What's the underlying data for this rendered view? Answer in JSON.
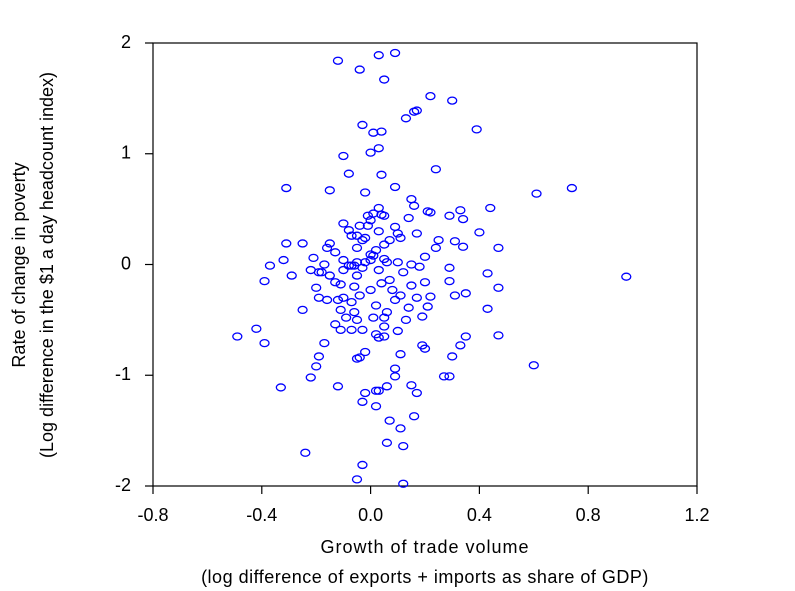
{
  "chart_data": {
    "type": "scatter",
    "xlabel": [
      "Growth of trade volume",
      "(log difference of exports + imports as share of GDP)"
    ],
    "ylabel": [
      "Rate of change in poverty",
      "(Log difference in the $1 a day headcount index)"
    ],
    "xlim": [
      -0.8,
      1.2
    ],
    "ylim": [
      -2,
      2
    ],
    "xticks": [
      -0.8,
      -0.4,
      {
        "value": 0,
        "label": "0.0"
      },
      0.4,
      0.8,
      1.2
    ],
    "yticks": [
      2,
      1,
      0,
      -1,
      -2
    ],
    "color": "#0000ff",
    "x": [
      -0.12,
      -0.04,
      0.03,
      0.09,
      0.05,
      0.22,
      0.3,
      -0.03,
      0.13,
      0.16,
      0.17,
      0.39,
      0.04,
      0.01,
      0.03,
      0.0,
      -0.1,
      0.24,
      -0.08,
      -0.02,
      0.09,
      -0.15,
      -0.31,
      0.61,
      0.74,
      0.04,
      0.94,
      0.6,
      0.47,
      0.47,
      0.43,
      0.44,
      0.47,
      0.43,
      0.4,
      0.35,
      0.33,
      0.31,
      0.35,
      0.33,
      0.34,
      0.31,
      0.34,
      0.29,
      0.29,
      0.29,
      0.3,
      0.29,
      0.27,
      0.25,
      0.24,
      0.22,
      0.21,
      0.2,
      0.18,
      0.2,
      0.21,
      0.22,
      0.2,
      0.19,
      0.19,
      0.17,
      0.15,
      0.16,
      0.17,
      0.14,
      0.15,
      0.15,
      0.17,
      0.14,
      0.13,
      0.15,
      0.16,
      0.11,
      0.1,
      0.09,
      0.09,
      0.11,
      0.12,
      0.1,
      0.11,
      0.09,
      0.1,
      0.08,
      0.07,
      0.09,
      0.06,
      0.06,
      0.05,
      0.05,
      0.04,
      0.05,
      0.05,
      0.05,
      0.03,
      0.02,
      0.01,
      0.02,
      0.0,
      0.03,
      0.02,
      0.03,
      0.04,
      0.03,
      0.0,
      -0.01,
      0.01,
      0.05,
      0.07,
      0.0,
      0.0,
      0.01,
      -0.02,
      -0.03,
      -0.05,
      -0.06,
      -0.04,
      -0.07,
      -0.06,
      -0.05,
      -0.03,
      -0.07,
      -0.04,
      -0.02,
      -0.05,
      -0.11,
      -0.09,
      -0.1,
      -0.11,
      -0.11,
      -0.1,
      -0.1,
      -0.08,
      -0.07,
      -0.06,
      -0.05,
      -0.05,
      -0.07,
      -0.05,
      -0.08,
      -0.1,
      -0.03,
      -0.02,
      -0.01,
      -0.04,
      -0.13,
      -0.15,
      -0.16,
      -0.17,
      -0.18,
      -0.15,
      -0.13,
      -0.16,
      -0.12,
      -0.19,
      -0.2,
      -0.19,
      -0.21,
      -0.22,
      -0.25,
      -0.25,
      -0.31,
      -0.29,
      -0.32,
      -0.37,
      -0.39,
      -0.42,
      -0.39,
      -0.49,
      -0.33,
      -0.24,
      -0.22,
      -0.2,
      -0.19,
      -0.17,
      -0.13,
      -0.12,
      -0.03,
      -0.02,
      0.02,
      0.02,
      0.03,
      0.06,
      0.11,
      -0.03,
      -0.05,
      0.06,
      0.12,
      0.12,
      0.07
    ],
    "y": [
      1.84,
      1.76,
      1.89,
      1.91,
      1.67,
      1.52,
      1.48,
      1.26,
      1.32,
      1.38,
      1.39,
      1.22,
      1.2,
      1.19,
      1.05,
      1.01,
      0.98,
      0.86,
      0.82,
      0.65,
      0.7,
      0.67,
      0.69,
      0.64,
      0.69,
      0.81,
      -0.11,
      -0.91,
      -0.21,
      -0.64,
      -0.4,
      0.51,
      0.15,
      -0.08,
      0.29,
      -0.65,
      -0.73,
      -0.28,
      -0.26,
      0.49,
      0.41,
      0.21,
      0.16,
      0.44,
      -0.03,
      -0.15,
      -0.83,
      -1.01,
      -1.01,
      0.22,
      0.15,
      0.47,
      0.48,
      0.07,
      -0.02,
      -0.16,
      -0.38,
      -0.29,
      -0.76,
      -0.73,
      -0.47,
      -1.16,
      0.59,
      0.53,
      0.28,
      0.42,
      0.0,
      -0.19,
      -0.3,
      -0.39,
      -0.5,
      -1.09,
      -1.37,
      -0.81,
      -0.6,
      -0.94,
      -1.01,
      -0.28,
      -0.07,
      0.28,
      0.24,
      0.34,
      0.02,
      -0.23,
      -0.14,
      -0.32,
      -0.43,
      0.02,
      0.18,
      0.05,
      -0.17,
      -0.48,
      -0.56,
      -0.65,
      -0.66,
      -0.63,
      -0.48,
      -0.37,
      -0.23,
      -0.05,
      0.13,
      0.3,
      0.45,
      0.51,
      0.4,
      0.35,
      0.46,
      0.44,
      0.22,
      0.04,
      0.09,
      0.08,
      0.02,
      -0.03,
      -0.1,
      -0.2,
      -0.28,
      -0.34,
      -0.43,
      -0.5,
      -0.59,
      -0.59,
      -0.84,
      -0.79,
      -0.85,
      -0.59,
      -0.48,
      -0.3,
      -0.41,
      -0.18,
      -0.05,
      0.04,
      -0.01,
      -0.01,
      -0.01,
      0.02,
      0.15,
      0.26,
      0.26,
      0.31,
      0.37,
      0.22,
      0.24,
      0.44,
      0.35,
      0.11,
      0.19,
      0.15,
      0.0,
      -0.07,
      -0.1,
      -0.16,
      -0.32,
      -0.32,
      -0.3,
      -0.21,
      -0.07,
      0.06,
      -0.05,
      0.19,
      -0.41,
      0.19,
      -0.1,
      0.04,
      -0.01,
      -0.15,
      -0.58,
      -0.71,
      -0.65,
      -1.11,
      -1.7,
      -1.02,
      -0.92,
      -0.83,
      -0.71,
      -0.54,
      -1.1,
      -1.24,
      -1.16,
      -1.14,
      -1.28,
      -1.14,
      -1.1,
      -1.48,
      -1.81,
      -1.94,
      -1.61,
      -1.64,
      -1.98,
      -1.41
    ]
  }
}
